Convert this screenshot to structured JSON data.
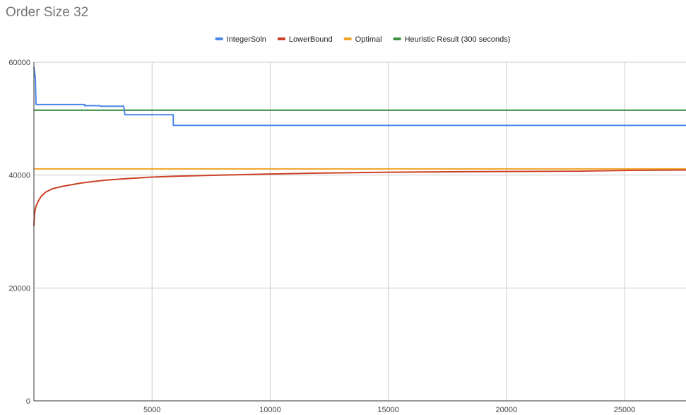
{
  "chart_data": {
    "type": "line",
    "title": "Order Size 32",
    "xlabel": "",
    "ylabel": "",
    "xlim": [
      0,
      27600
    ],
    "ylim": [
      0,
      60000
    ],
    "x_ticks": [
      5000,
      10000,
      15000,
      20000,
      25000
    ],
    "y_ticks": [
      0,
      20000,
      40000,
      60000
    ],
    "grid": true,
    "legend_position": "top",
    "series": [
      {
        "name": "IntegerSoln",
        "color": "#4a86e8",
        "step": true,
        "points": [
          [
            0,
            59100
          ],
          [
            60,
            57200
          ],
          [
            90,
            52500
          ],
          [
            2150,
            52500
          ],
          [
            2150,
            52300
          ],
          [
            2800,
            52300
          ],
          [
            2800,
            52200
          ],
          [
            3800,
            52200
          ],
          [
            3850,
            50700
          ],
          [
            5900,
            50700
          ],
          [
            5900,
            48800
          ],
          [
            27600,
            48800
          ]
        ]
      },
      {
        "name": "LowerBound",
        "color": "#cc4125",
        "step": false,
        "points": [
          [
            0,
            31000
          ],
          [
            20,
            32800
          ],
          [
            50,
            33800
          ],
          [
            100,
            34600
          ],
          [
            200,
            35500
          ],
          [
            300,
            36200
          ],
          [
            500,
            37000
          ],
          [
            800,
            37600
          ],
          [
            1200,
            38000
          ],
          [
            2000,
            38600
          ],
          [
            3000,
            39100
          ],
          [
            4000,
            39400
          ],
          [
            5000,
            39650
          ],
          [
            6000,
            39800
          ],
          [
            8000,
            40000
          ],
          [
            10000,
            40200
          ],
          [
            12000,
            40350
          ],
          [
            15000,
            40500
          ],
          [
            18000,
            40600
          ],
          [
            23000,
            40700
          ],
          [
            25500,
            40850
          ],
          [
            27600,
            40900
          ]
        ]
      },
      {
        "name": "Optimal",
        "color": "#f1a325",
        "step": false,
        "points": [
          [
            0,
            41100
          ],
          [
            27600,
            41100
          ]
        ]
      },
      {
        "name": "Heuristic Result (300 seconds)",
        "color": "#3d9142",
        "step": false,
        "points": [
          [
            0,
            51500
          ],
          [
            27600,
            51500
          ]
        ]
      }
    ]
  }
}
